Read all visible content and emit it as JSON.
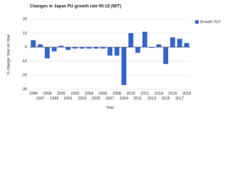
{
  "chart_data": {
    "type": "bar",
    "title": "Changes in Japan PU growth rate 95-18 (M/T)",
    "x_label": "Year",
    "y_label": "% change Year on Year",
    "categories": [
      "1996",
      "1997",
      "1998",
      "1999",
      "2000",
      "2001",
      "2002",
      "2003",
      "2004",
      "2005",
      "2006",
      "2007",
      "2008",
      "2009",
      "2010",
      "2011",
      "2012",
      "2013",
      "2014",
      "2015",
      "2016",
      "2017",
      "2018"
    ],
    "series": [
      {
        "name": "Growth YoY",
        "color": "#3366cc",
        "values": [
          5,
          2,
          -8,
          -3,
          1,
          -2,
          -1,
          -1,
          -1,
          -1,
          -1,
          -6,
          -6,
          -27,
          10,
          -4,
          11,
          -0.5,
          2,
          -12,
          7,
          6,
          3
        ]
      }
    ],
    "ylim": [
      -30,
      20
    ],
    "yticks": [
      -30,
      -20,
      -10,
      0,
      10,
      20
    ],
    "grid": true,
    "legend": "right"
  }
}
